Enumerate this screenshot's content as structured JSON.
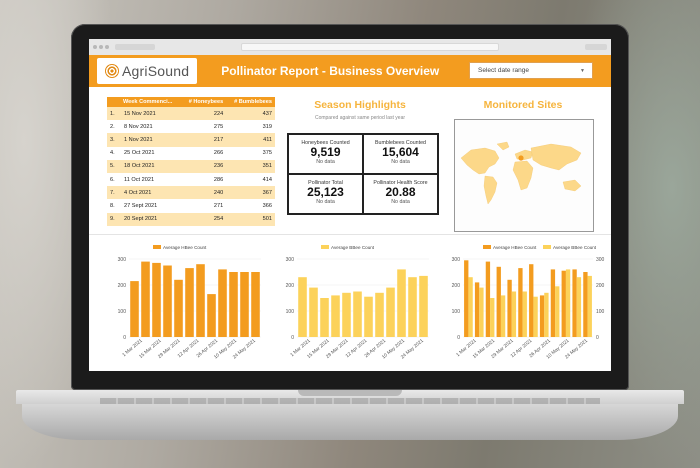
{
  "header": {
    "logo_text": "AgriSound",
    "title": "Pollinator Report - Business Overview",
    "date_range_placeholder": "Select date range"
  },
  "weeks_table": {
    "columns": [
      "Week Commenci...",
      "# Honeybees",
      "# Bumblebees"
    ],
    "rows": [
      {
        "idx": "1.",
        "week": "15 Nov 2021",
        "honeybees": "224",
        "bumblebees": "437"
      },
      {
        "idx": "2.",
        "week": "8 Nov 2021",
        "honeybees": "275",
        "bumblebees": "319"
      },
      {
        "idx": "3.",
        "week": "1 Nov 2021",
        "honeybees": "217",
        "bumblebees": "411"
      },
      {
        "idx": "4.",
        "week": "25 Oct 2021",
        "honeybees": "266",
        "bumblebees": "375"
      },
      {
        "idx": "5.",
        "week": "18 Oct 2021",
        "honeybees": "236",
        "bumblebees": "351"
      },
      {
        "idx": "6.",
        "week": "11 Oct 2021",
        "honeybees": "286",
        "bumblebees": "414"
      },
      {
        "idx": "7.",
        "week": "4 Oct 2021",
        "honeybees": "240",
        "bumblebees": "367"
      },
      {
        "idx": "8.",
        "week": "27 Sept 2021",
        "honeybees": "271",
        "bumblebees": "366"
      },
      {
        "idx": "9.",
        "week": "20 Sept 2021",
        "honeybees": "254",
        "bumblebees": "501"
      }
    ]
  },
  "season": {
    "title": "Season Highlights",
    "subtitle": "Compared against same period last year",
    "kpis": [
      {
        "label": "Honeybees Counted",
        "value": "9,519",
        "delta": "No data"
      },
      {
        "label": "Bumblebees Counted",
        "value": "15,604",
        "delta": "No data"
      },
      {
        "label": "Pollinator Total",
        "value": "25,123",
        "delta": "No data"
      },
      {
        "label": "Pollinator Health Score",
        "value": "20.88",
        "delta": "No data"
      }
    ]
  },
  "sites": {
    "title": "Monitored Sites"
  },
  "colors": {
    "orange": "#f39c1f",
    "yellow": "#fcd25a",
    "title_gold": "#f6b43d"
  },
  "chart_data": [
    {
      "type": "bar",
      "legend": [
        "Average HBee Count"
      ],
      "ylim": [
        0,
        300
      ],
      "yticks": [
        0,
        100,
        200,
        300
      ],
      "xtick_labels": [
        "1 Mar 2021",
        "15 Mar 2021",
        "29 Mar 2021",
        "12 Apr 2021",
        "26 Apr 2021",
        "10 May 2021",
        "24 May 2021"
      ],
      "series": [
        {
          "name": "Average HBee Count",
          "color": "#f39c1f",
          "values": [
            215,
            290,
            285,
            275,
            220,
            265,
            280,
            165,
            260,
            250,
            250,
            250
          ]
        }
      ]
    },
    {
      "type": "bar",
      "legend": [
        "Average BBee Count"
      ],
      "ylim": [
        0,
        300
      ],
      "yticks": [
        0,
        100,
        200,
        300
      ],
      "xtick_labels": [
        "1 Mar 2021",
        "15 Mar 2021",
        "29 Mar 2021",
        "12 Apr 2021",
        "26 Apr 2021",
        "10 May 2021",
        "24 May 2021"
      ],
      "series": [
        {
          "name": "Average BBee Count",
          "color": "#fcd25a",
          "values": [
            230,
            190,
            150,
            160,
            170,
            175,
            155,
            170,
            190,
            260,
            230,
            235
          ]
        }
      ]
    },
    {
      "type": "bar",
      "legend": [
        "Average HBee Count",
        "Average BBee Count"
      ],
      "ylim": [
        0,
        300
      ],
      "yticks": [
        0,
        100,
        200,
        300
      ],
      "yticks_right": [
        0,
        100,
        200,
        300
      ],
      "xtick_labels": [
        "1 Mar 2021",
        "15 Mar 2021",
        "29 Mar 2021",
        "12 Apr 2021",
        "26 Apr 2021",
        "10 May 2021",
        "24 May 2021"
      ],
      "series": [
        {
          "name": "Average HBee Count",
          "color": "#f39c1f",
          "values": [
            295,
            210,
            290,
            270,
            220,
            265,
            280,
            160,
            260,
            255,
            260,
            250
          ]
        },
        {
          "name": "Average BBee Count",
          "color": "#fcd25a",
          "values": [
            230,
            190,
            150,
            160,
            175,
            175,
            155,
            170,
            195,
            260,
            230,
            235
          ]
        }
      ]
    }
  ]
}
